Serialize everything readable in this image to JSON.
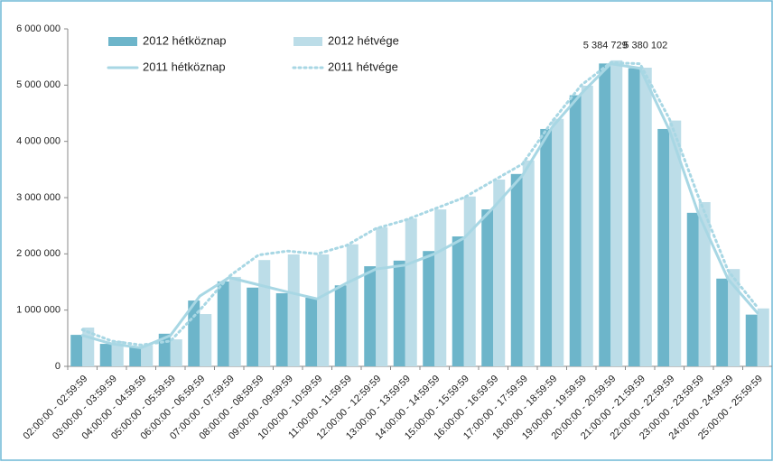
{
  "chart_data": {
    "type": "bar",
    "categories": [
      "02:00:00 - 02:59:59",
      "03:00:00 - 03:59:59",
      "04:00:00 - 04:59:59",
      "05:00:00 - 05:59:59",
      "06:00:00 - 06:59:59",
      "07:00:00 - 07:59:59",
      "08:00:00 - 08:59:59",
      "09:00:00 - 09:59:59",
      "10:00:00 - 10:59:59",
      "11:00:00 - 11:59:59",
      "12:00:00 - 12:59:59",
      "13:00:00 - 13:59:59",
      "14:00:00 - 14:59:59",
      "15:00:00 - 15:59:59",
      "16:00:00 - 16:59:59",
      "17:00:00 - 17:59:59",
      "18:00:00 - 18:59:59",
      "19:00:00 - 19:59:59",
      "20:00:00 - 20:59:59",
      "21:00:00 - 21:59:59",
      "22:00:00 - 22:59:59",
      "23:00:00 - 23:59:59",
      "24:00:00 - 24:59:59",
      "25:00:00 - 25:59:59"
    ],
    "series": [
      {
        "name": "2012 hétköznap",
        "type": "bar",
        "color": "#6db5ca",
        "values": [
          560000,
          400000,
          350000,
          580000,
          1170000,
          1510000,
          1400000,
          1300000,
          1220000,
          1440000,
          1780000,
          1880000,
          2050000,
          2310000,
          2790000,
          3420000,
          4220000,
          4820000,
          5384729,
          5300000,
          4220000,
          2730000,
          1560000,
          920000
        ],
        "value_labels": [
          null,
          null,
          null,
          null,
          null,
          null,
          null,
          null,
          null,
          null,
          null,
          null,
          null,
          null,
          null,
          null,
          null,
          null,
          "5 384 729",
          null,
          null,
          null,
          null,
          null
        ]
      },
      {
        "name": "2012 hétvége",
        "type": "bar",
        "color": "#bcdde8",
        "values": [
          690000,
          450000,
          380000,
          480000,
          930000,
          1590000,
          1890000,
          1990000,
          1990000,
          2170000,
          2470000,
          2630000,
          2790000,
          3020000,
          3320000,
          3660000,
          4400000,
          4990000,
          5440000,
          5310000,
          4370000,
          2920000,
          1730000,
          1030000
        ]
      },
      {
        "name": "2011 hétköznap",
        "type": "line",
        "color": "#a8d7e4",
        "dashed": false,
        "values": [
          550000,
          400000,
          330000,
          550000,
          1250000,
          1580000,
          1450000,
          1320000,
          1200000,
          1480000,
          1730000,
          1800000,
          2000000,
          2280000,
          2820000,
          3400000,
          4250000,
          4850000,
          5380000,
          5300000,
          4200000,
          2700000,
          1550000,
          950000
        ]
      },
      {
        "name": "2011 hétvége",
        "type": "line",
        "color": "#a8d7e4",
        "dashed": true,
        "values": [
          650000,
          450000,
          380000,
          450000,
          1000000,
          1600000,
          1980000,
          2050000,
          2000000,
          2150000,
          2450000,
          2600000,
          2800000,
          3000000,
          3300000,
          3600000,
          4350000,
          5000000,
          5400000,
          5380102,
          4400000,
          3000000,
          1700000,
          1050000
        ],
        "value_labels": [
          null,
          null,
          null,
          null,
          null,
          null,
          null,
          null,
          null,
          null,
          null,
          null,
          null,
          null,
          null,
          null,
          null,
          null,
          null,
          "5 380 102",
          null,
          null,
          null,
          null
        ]
      }
    ],
    "ylim": [
      0,
      6000000
    ],
    "yticks": [
      0,
      {
        "value": 1000000,
        "label": "1 000 000"
      },
      {
        "value": 2000000,
        "label": "2 000 000"
      },
      {
        "value": 3000000,
        "label": "3 000 000"
      },
      {
        "value": 4000000,
        "label": "4 000 000"
      },
      {
        "value": 5000000,
        "label": "5 000 000"
      },
      {
        "value": 6000000,
        "label": "6 000 000"
      }
    ],
    "grid": false,
    "legend": "top-left"
  }
}
